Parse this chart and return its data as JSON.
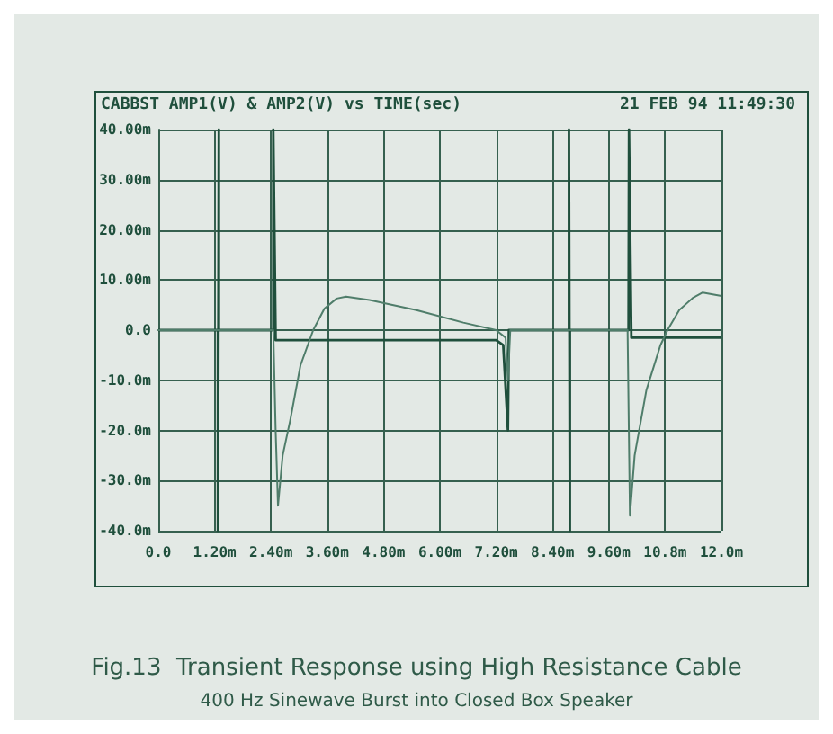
{
  "chart_data": {
    "type": "line",
    "title": "Fig.13  Transient Response using High Resistance Cable",
    "subtitle": "400 Hz Sinewave Burst into Closed Box Speaker",
    "annotations": [
      "CABBST AMP1(V) & AMP2(V) vs TIME(sec)",
      "21 FEB 94 11:49:30"
    ],
    "series": [
      {
        "color": "#1f4f3c",
        "x": [
          0,
          1.27,
          1.27,
          1.29,
          1.29,
          2.45,
          2.45,
          2.5,
          2.55,
          7.2,
          7.35,
          7.45,
          7.47,
          7.5,
          8.75,
          8.75,
          8.77,
          8.77,
          10.02,
          10.03,
          10.08,
          12
        ],
        "values": [
          0,
          0,
          -40,
          40,
          0,
          0,
          40,
          -2,
          -2,
          -2,
          -3,
          -20,
          0,
          0,
          0,
          40,
          -40,
          0,
          0,
          40,
          -1.5,
          -1.5
        ]
      },
      {
        "color": "#4f7d6a",
        "x": [
          0,
          2.45,
          2.5,
          2.55,
          2.65,
          2.81,
          3.03,
          3.3,
          3.54,
          3.8,
          4.0,
          4.5,
          5.5,
          6.5,
          7.2,
          7.4,
          7.45,
          7.5,
          10.0,
          10.05,
          10.15,
          10.4,
          10.7,
          10.85,
          11.1,
          11.4,
          11.6,
          12
        ],
        "values": [
          0,
          0,
          -20,
          -35,
          -25,
          -18,
          -7,
          0,
          4.3,
          6.3,
          6.7,
          6,
          4,
          1.5,
          0,
          -1.5,
          -10,
          0,
          0,
          -37,
          -25,
          -12,
          -3,
          0,
          4,
          6.5,
          7.5,
          6.8
        ]
      }
    ],
    "xlim": [
      0,
      12
    ],
    "xticks": [
      {
        "value": 0,
        "label": "0.0"
      },
      {
        "value": 1.2,
        "label": "1.20m"
      },
      {
        "value": 2.4,
        "label": "2.40m"
      },
      {
        "value": 3.6,
        "label": "3.60m"
      },
      {
        "value": 4.8,
        "label": "4.80m"
      },
      {
        "value": 6,
        "label": "6.00m"
      },
      {
        "value": 7.2,
        "label": "7.20m"
      },
      {
        "value": 8.4,
        "label": "8.40m"
      },
      {
        "value": 9.6,
        "label": "9.60m"
      },
      {
        "value": 10.8,
        "label": "10.8m"
      },
      {
        "value": 12,
        "label": "12.0m"
      }
    ],
    "ylim": [
      -40,
      40
    ],
    "yticks": [
      {
        "value": -40,
        "label": "-40.0m"
      },
      {
        "value": -30,
        "label": "-30.0m"
      },
      {
        "value": -20,
        "label": "-20.0m"
      },
      {
        "value": -10,
        "label": "-10.0m"
      },
      {
        "value": 0,
        "label": "0.0"
      },
      {
        "value": 10,
        "label": "10.00m"
      },
      {
        "value": 20,
        "label": "20.00m"
      },
      {
        "value": 30,
        "label": "30.00m"
      },
      {
        "value": 40,
        "label": "40.00m"
      }
    ],
    "grid": true,
    "marker": "none",
    "line_style": "solid"
  }
}
